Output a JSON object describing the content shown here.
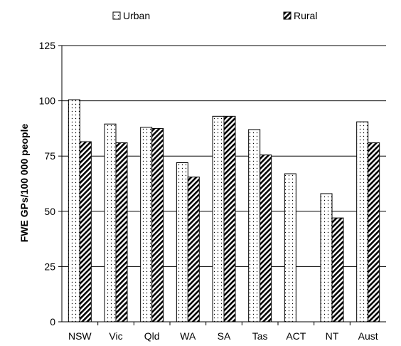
{
  "chart_data": {
    "type": "bar",
    "title": "",
    "xlabel": "",
    "ylabel": "FWE GPs/100 000 people",
    "ylim": [
      0,
      125
    ],
    "yticks": [
      0,
      25,
      50,
      75,
      100,
      125
    ],
    "grid": "horizontal",
    "legend_position": "top",
    "categories": [
      "NSW",
      "Vic",
      "Qld",
      "WA",
      "SA",
      "Tas",
      "ACT",
      "NT",
      "Aust"
    ],
    "series": [
      {
        "name": "Urban",
        "pattern": "dots",
        "values": [
          100.5,
          89.5,
          88,
          72,
          93,
          87,
          67,
          58,
          90.5
        ]
      },
      {
        "name": "Rural",
        "pattern": "diagonal-hatch",
        "values": [
          81.5,
          81,
          87.5,
          65.5,
          93,
          75.5,
          null,
          47,
          81
        ]
      }
    ]
  }
}
